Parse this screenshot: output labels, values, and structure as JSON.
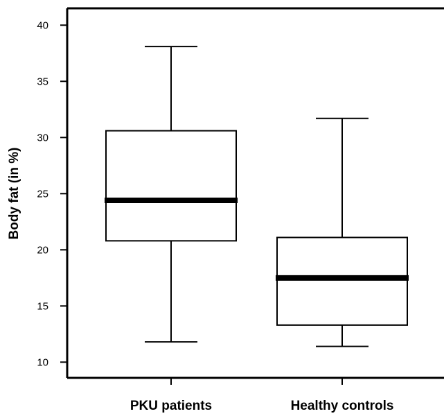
{
  "chart_data": {
    "type": "box",
    "title": "",
    "xlabel": "",
    "ylabel": "Body fat (in %)",
    "ylim": [
      8.6,
      41.5
    ],
    "yticks": [
      10,
      15,
      20,
      25,
      30,
      35,
      40
    ],
    "ytick_labels": [
      "10",
      "15",
      "20",
      "25",
      "30",
      "35",
      "40"
    ],
    "categories": [
      "PKU patients",
      "Healthy controls"
    ],
    "boxes": [
      {
        "name": "PKU patients",
        "whisker_low": 11.8,
        "q1": 20.8,
        "median": 24.4,
        "q3": 30.6,
        "whisker_high": 38.1
      },
      {
        "name": "Healthy controls",
        "whisker_low": 11.4,
        "q1": 13.3,
        "median": 17.5,
        "q3": 21.1,
        "whisker_high": 31.7
      }
    ],
    "grid": false,
    "legend": "none"
  }
}
